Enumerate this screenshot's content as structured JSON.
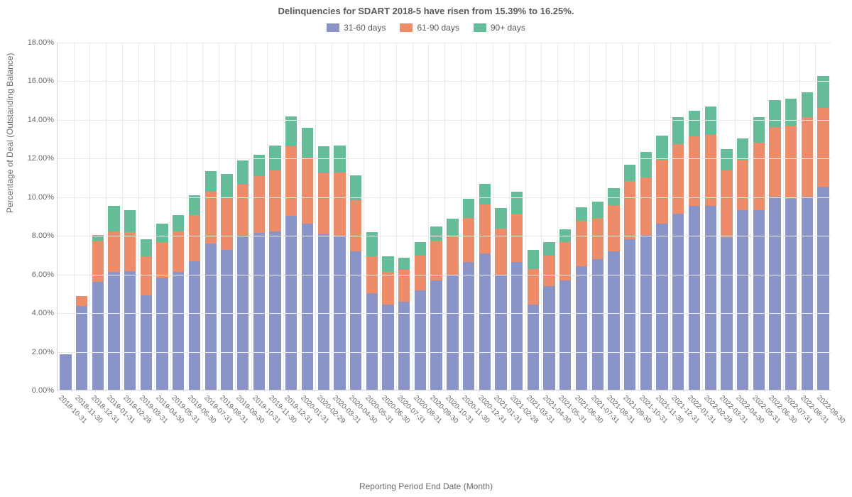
{
  "chart": {
    "type": "stacked-bar",
    "title": "Delinquencies for SDART 2018-5 have risen from 15.39% to 16.25%.",
    "title_fontsize": 13,
    "title_color": "#5a5a5a",
    "xlabel": "Reporting Period End Date (Month)",
    "ylabel": "Percentage of Deal (Outstanding Balance)",
    "label_fontsize": 12,
    "label_color": "#6a6a6a",
    "background_color": "#ffffff",
    "grid_color": "#eaeaea",
    "axis_color": "#d0d0d0",
    "tick_fontsize": 11,
    "xtick_fontsize": 10,
    "xtick_rotation": 45,
    "ylim": [
      0,
      18
    ],
    "ytick_step": 2,
    "yticks": [
      "0.00%",
      "2.00%",
      "4.00%",
      "6.00%",
      "8.00%",
      "10.00%",
      "12.00%",
      "14.00%",
      "16.00%",
      "18.00%"
    ],
    "bar_width_ratio": 0.72,
    "legend": {
      "position": "top-center",
      "fontsize": 12,
      "items": [
        {
          "label": "31-60 days",
          "color": "#8a94c6"
        },
        {
          "label": "61-90 days",
          "color": "#ee8c69"
        },
        {
          "label": "90+ days",
          "color": "#64bd98"
        }
      ]
    },
    "series_colors": {
      "s1": "#8a94c6",
      "s2": "#ee8c69",
      "s3": "#64bd98"
    },
    "categories": [
      "2018-10-31",
      "2018-11-30",
      "2018-12-31",
      "2019-01-31",
      "2019-02-28",
      "2019-03-31",
      "2019-04-30",
      "2019-05-31",
      "2019-06-30",
      "2019-07-31",
      "2019-08-31",
      "2019-09-30",
      "2019-10-31",
      "2019-11-30",
      "2019-12-31",
      "2020-01-31",
      "2020-02-29",
      "2020-03-31",
      "2020-04-30",
      "2020-05-31",
      "2020-06-30",
      "2020-07-31",
      "2020-08-31",
      "2020-09-30",
      "2020-10-31",
      "2020-11-30",
      "2020-12-31",
      "2021-01-31",
      "2021-02-28",
      "2021-03-31",
      "2021-04-30",
      "2021-05-31",
      "2021-06-30",
      "2021-07-31",
      "2021-08-31",
      "2021-09-30",
      "2021-10-31",
      "2021-11-30",
      "2021-12-31",
      "2022-01-31",
      "2022-02-28",
      "2022-03-31",
      "2022-04-30",
      "2022-05-31",
      "2022-06-30",
      "2022-07-31",
      "2022-08-31",
      "2022-09-30"
    ],
    "data": [
      {
        "s1": 1.85,
        "s2": 0.0,
        "s3": 0.0
      },
      {
        "s1": 4.35,
        "s2": 0.5,
        "s3": 0.0
      },
      {
        "s1": 5.6,
        "s2": 2.1,
        "s3": 0.3
      },
      {
        "s1": 6.1,
        "s2": 2.1,
        "s3": 1.3
      },
      {
        "s1": 6.15,
        "s2": 2.0,
        "s3": 1.15
      },
      {
        "s1": 4.9,
        "s2": 2.0,
        "s3": 0.9
      },
      {
        "s1": 5.8,
        "s2": 1.85,
        "s3": 0.95
      },
      {
        "s1": 6.1,
        "s2": 2.1,
        "s3": 0.85
      },
      {
        "s1": 6.65,
        "s2": 2.4,
        "s3": 1.0
      },
      {
        "s1": 7.55,
        "s2": 2.7,
        "s3": 1.05
      },
      {
        "s1": 7.25,
        "s2": 2.7,
        "s3": 1.2
      },
      {
        "s1": 8.0,
        "s2": 2.6,
        "s3": 1.25
      },
      {
        "s1": 8.1,
        "s2": 2.95,
        "s3": 1.1
      },
      {
        "s1": 8.2,
        "s2": 3.15,
        "s3": 1.3
      },
      {
        "s1": 9.0,
        "s2": 3.6,
        "s3": 1.55
      },
      {
        "s1": 8.6,
        "s2": 3.4,
        "s3": 1.55
      },
      {
        "s1": 8.05,
        "s2": 3.15,
        "s3": 1.4
      },
      {
        "s1": 7.95,
        "s2": 3.3,
        "s3": 1.4
      },
      {
        "s1": 7.15,
        "s2": 2.65,
        "s3": 1.3
      },
      {
        "s1": 5.0,
        "s2": 1.9,
        "s3": 1.25
      },
      {
        "s1": 4.4,
        "s2": 1.7,
        "s3": 0.8
      },
      {
        "s1": 4.55,
        "s2": 1.65,
        "s3": 0.65
      },
      {
        "s1": 5.15,
        "s2": 1.8,
        "s3": 0.7
      },
      {
        "s1": 5.65,
        "s2": 2.05,
        "s3": 0.75
      },
      {
        "s1": 5.95,
        "s2": 2.05,
        "s3": 0.85
      },
      {
        "s1": 6.6,
        "s2": 2.3,
        "s3": 1.0
      },
      {
        "s1": 7.05,
        "s2": 2.55,
        "s3": 1.05
      },
      {
        "s1": 5.95,
        "s2": 2.4,
        "s3": 1.05
      },
      {
        "s1": 6.6,
        "s2": 2.5,
        "s3": 1.15
      },
      {
        "s1": 4.4,
        "s2": 1.85,
        "s3": 1.0
      },
      {
        "s1": 5.35,
        "s2": 1.6,
        "s3": 0.7
      },
      {
        "s1": 5.65,
        "s2": 2.0,
        "s3": 0.65
      },
      {
        "s1": 6.4,
        "s2": 2.35,
        "s3": 0.7
      },
      {
        "s1": 6.75,
        "s2": 2.15,
        "s3": 0.85
      },
      {
        "s1": 7.15,
        "s2": 2.4,
        "s3": 0.9
      },
      {
        "s1": 7.8,
        "s2": 3.0,
        "s3": 0.85
      },
      {
        "s1": 8.0,
        "s2": 3.0,
        "s3": 1.3
      },
      {
        "s1": 8.6,
        "s2": 3.3,
        "s3": 1.25
      },
      {
        "s1": 9.1,
        "s2": 3.6,
        "s3": 1.4
      },
      {
        "s1": 9.5,
        "s2": 3.6,
        "s3": 1.35
      },
      {
        "s1": 9.5,
        "s2": 3.7,
        "s3": 1.45
      },
      {
        "s1": 7.9,
        "s2": 3.45,
        "s3": 1.1
      },
      {
        "s1": 9.3,
        "s2": 2.6,
        "s3": 1.1
      },
      {
        "s1": 9.3,
        "s2": 3.5,
        "s3": 1.3
      },
      {
        "s1": 10.0,
        "s2": 3.6,
        "s3": 1.4
      },
      {
        "s1": 9.9,
        "s2": 3.75,
        "s3": 1.4
      },
      {
        "s1": 10.0,
        "s2": 4.1,
        "s3": 1.29
      },
      {
        "s1": 10.5,
        "s2": 4.1,
        "s3": 1.65
      }
    ]
  }
}
